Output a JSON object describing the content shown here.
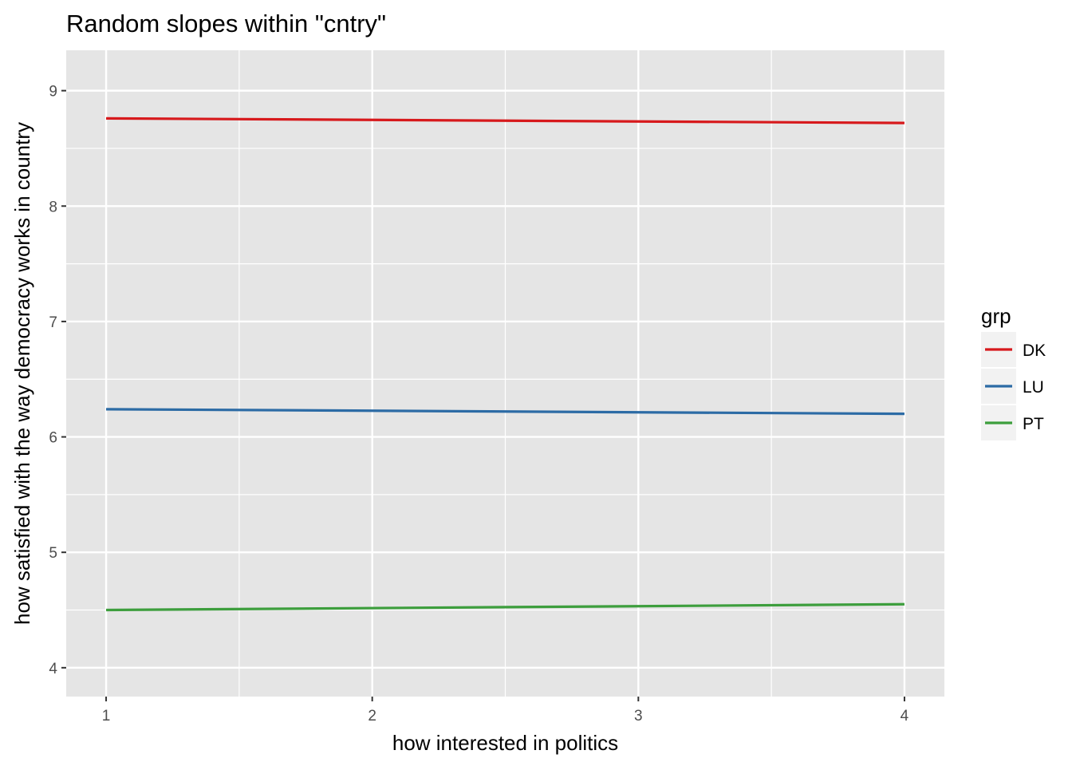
{
  "chart_data": {
    "type": "line",
    "title": "Random slopes within \"cntry\"",
    "xlabel": "how interested in politics",
    "ylabel": "how satisfied with the way democracy works in country",
    "x": [
      1,
      4
    ],
    "xlim": [
      0.85,
      4.15
    ],
    "ylim": [
      3.75,
      9.35
    ],
    "x_ticks": [
      "1",
      "2",
      "3",
      "4"
    ],
    "y_ticks": [
      "4",
      "5",
      "6",
      "7",
      "8",
      "9"
    ],
    "grid": true,
    "panel_background": "#e5e5e5",
    "grid_color": "#ffffff",
    "legend": {
      "title": "grp",
      "position": "right",
      "entries": [
        "DK",
        "LU",
        "PT"
      ]
    },
    "series": [
      {
        "name": "DK",
        "color": "#d7191c",
        "values": [
          8.76,
          8.72
        ]
      },
      {
        "name": "LU",
        "color": "#2c6ba5",
        "values": [
          6.24,
          6.2
        ]
      },
      {
        "name": "PT",
        "color": "#3d9e3d",
        "values": [
          4.5,
          4.55
        ]
      }
    ]
  }
}
